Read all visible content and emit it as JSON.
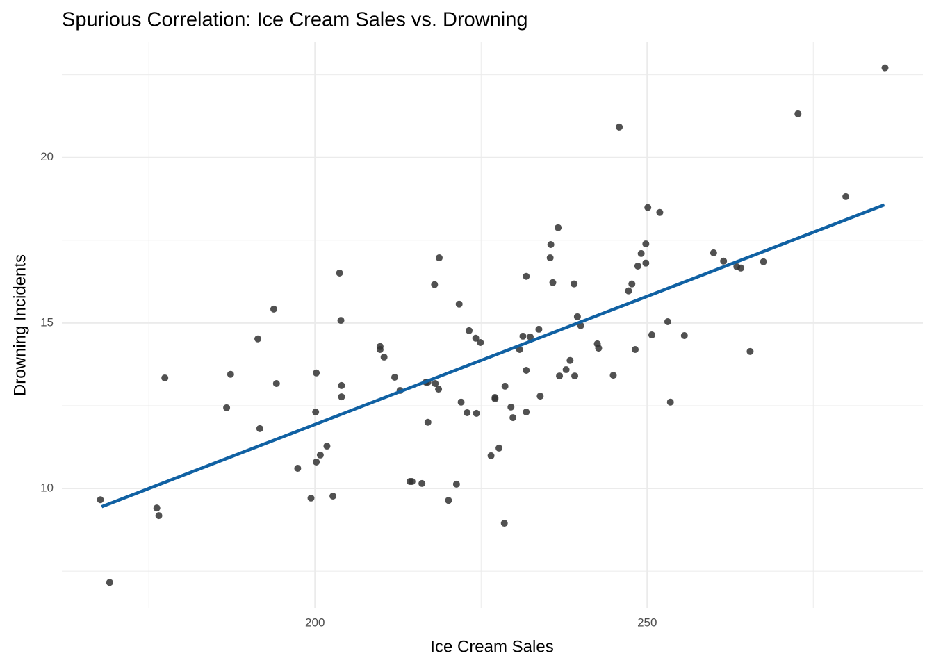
{
  "chart_data": {
    "type": "scatter",
    "title": "Spurious Correlation: Ice Cream Sales vs. Drowning",
    "x_label": "Ice Cream Sales",
    "y_label": "Drowning Incidents",
    "x": [
      167.7,
      169.1,
      176.2,
      176.5,
      177.4,
      186.7,
      187.3,
      191.4,
      191.7,
      193.8,
      194.2,
      197.4,
      199.4,
      200.1,
      200.2,
      200.2,
      200.8,
      201.8,
      202.7,
      203.7,
      203.9,
      204.0,
      204.0,
      209.8,
      209.8,
      210.4,
      212.0,
      212.8,
      214.3,
      214.6,
      216.1,
      216.7,
      217.0,
      217.0,
      218.0,
      218.1,
      218.6,
      218.7,
      220.1,
      221.3,
      221.7,
      222.0,
      222.9,
      223.2,
      224.2,
      224.3,
      224.9,
      226.5,
      227.1,
      227.1,
      227.7,
      228.5,
      228.6,
      229.5,
      229.8,
      230.8,
      231.3,
      231.8,
      231.8,
      231.8,
      232.4,
      233.7,
      233.9,
      235.4,
      235.5,
      235.8,
      236.6,
      236.8,
      237.8,
      238.4,
      239.0,
      239.1,
      239.5,
      240.0,
      242.5,
      242.7,
      244.9,
      245.8,
      247.2,
      247.7,
      248.2,
      248.6,
      249.1,
      249.8,
      249.8,
      250.1,
      250.7,
      251.9,
      253.1,
      253.5,
      255.6,
      260.0,
      261.5,
      263.5,
      264.1,
      265.5,
      267.5,
      272.7,
      279.9,
      285.8
    ],
    "values": [
      9.66,
      7.16,
      9.41,
      9.18,
      13.34,
      12.44,
      13.45,
      14.52,
      11.81,
      15.42,
      13.17,
      10.61,
      9.71,
      12.31,
      13.49,
      10.8,
      11.01,
      11.28,
      9.77,
      16.51,
      15.08,
      12.77,
      13.11,
      14.29,
      14.2,
      13.97,
      13.36,
      12.96,
      10.21,
      10.21,
      10.15,
      13.21,
      13.21,
      12.0,
      16.16,
      13.17,
      13.0,
      16.97,
      9.64,
      10.13,
      15.57,
      12.61,
      12.29,
      14.77,
      14.54,
      12.27,
      14.41,
      10.99,
      12.75,
      12.71,
      11.22,
      8.95,
      13.09,
      12.46,
      12.14,
      14.2,
      14.6,
      16.41,
      13.57,
      12.31,
      14.58,
      14.81,
      12.79,
      16.97,
      17.37,
      16.22,
      17.88,
      13.4,
      13.59,
      13.87,
      16.18,
      13.4,
      15.19,
      14.92,
      14.37,
      14.24,
      13.42,
      20.92,
      15.97,
      16.18,
      14.2,
      16.72,
      17.1,
      16.81,
      17.39,
      18.49,
      14.64,
      18.34,
      15.04,
      12.61,
      14.62,
      17.12,
      16.87,
      16.7,
      16.66,
      14.14,
      16.85,
      21.32,
      18.82,
      22.71
    ],
    "color": "#333333",
    "trend": {
      "x": [
        167.9,
        285.7
      ],
      "y": [
        9.45,
        18.57
      ],
      "color": "#1061a3"
    },
    "xlim": [
      161.9,
      291.5
    ],
    "ylim": [
      6.39,
      23.5
    ],
    "xticks": [
      200,
      250
    ],
    "yticks": [
      10,
      15,
      20
    ],
    "x_minor_grid": [
      175,
      225,
      275
    ],
    "y_minor_grid": [
      7.5,
      12.5,
      17.5,
      22.5
    ],
    "grid": true
  }
}
